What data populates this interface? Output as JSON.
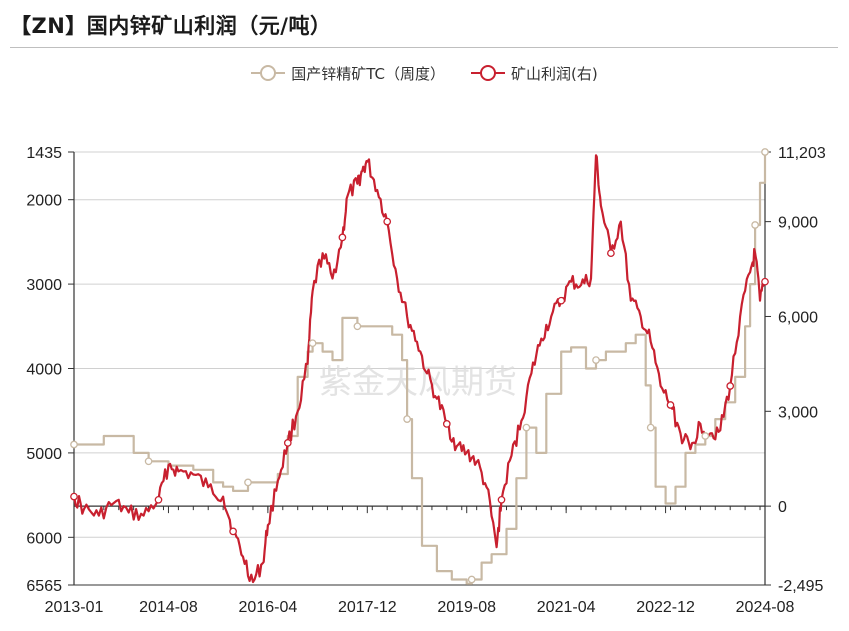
{
  "title": "【ZN】国内锌矿山利润（元/吨）",
  "watermark": "紫金天风期货",
  "colors": {
    "tc": "#c8b9a4",
    "profit": "#c8202f",
    "grid": "#d0d0d0",
    "axis": "#333333"
  },
  "chart_data": {
    "type": "line",
    "title": "【ZN】国内锌矿山利润（元/吨）",
    "legend_position": "top-center",
    "grid": true,
    "x_ticks": [
      "2013-01",
      "2014-08",
      "2016-04",
      "2017-12",
      "2019-08",
      "2021-04",
      "2022-12",
      "2024-08"
    ],
    "x_range": [
      "2013-01",
      "2024-08"
    ],
    "left_axis": {
      "ticks": [
        "1435",
        "2000",
        "3000",
        "4000",
        "5000",
        "6000",
        "6565"
      ],
      "range": [
        1435,
        6565
      ],
      "inverted": true
    },
    "right_axis": {
      "ticks": [
        "11,203",
        "9,000",
        "6,000",
        "3,000",
        "0",
        "-2,495"
      ],
      "range": [
        -2495,
        11203
      ]
    },
    "series": [
      {
        "name": "国产锌精矿TC（周度）",
        "axis": "left",
        "marker": "hollow-circle",
        "points": [
          [
            "2013-01",
            4900
          ],
          [
            "2013-06",
            4900
          ],
          [
            "2013-07",
            4800
          ],
          [
            "2013-12",
            4800
          ],
          [
            "2014-01",
            5000
          ],
          [
            "2014-03",
            5000
          ],
          [
            "2014-04",
            5100
          ],
          [
            "2014-08",
            5150
          ],
          [
            "2015-01",
            5200
          ],
          [
            "2015-05",
            5350
          ],
          [
            "2015-07",
            5400
          ],
          [
            "2015-09",
            5450
          ],
          [
            "2015-12",
            5350
          ],
          [
            "2016-04",
            5350
          ],
          [
            "2016-06",
            5250
          ],
          [
            "2016-08",
            4800
          ],
          [
            "2016-10",
            4100
          ],
          [
            "2016-12",
            3800
          ],
          [
            "2017-01",
            3700
          ],
          [
            "2017-03",
            3800
          ],
          [
            "2017-05",
            3900
          ],
          [
            "2017-06",
            3900
          ],
          [
            "2017-07",
            3400
          ],
          [
            "2017-09",
            3400
          ],
          [
            "2017-10",
            3500
          ],
          [
            "2017-11",
            3500
          ],
          [
            "2018-01",
            3500
          ],
          [
            "2018-03",
            3500
          ],
          [
            "2018-05",
            3600
          ],
          [
            "2018-07",
            3900
          ],
          [
            "2018-08",
            4600
          ],
          [
            "2018-09",
            5300
          ],
          [
            "2018-11",
            6100
          ],
          [
            "2019-02",
            6400
          ],
          [
            "2019-05",
            6500
          ],
          [
            "2019-08",
            6550
          ],
          [
            "2019-09",
            6500
          ],
          [
            "2019-11",
            6300
          ],
          [
            "2020-01",
            6200
          ],
          [
            "2020-02",
            6200
          ],
          [
            "2020-04",
            5900
          ],
          [
            "2020-06",
            5300
          ],
          [
            "2020-08",
            4700
          ],
          [
            "2020-10",
            5000
          ],
          [
            "2020-12",
            4300
          ],
          [
            "2021-03",
            3800
          ],
          [
            "2021-05",
            3750
          ],
          [
            "2021-08",
            4000
          ],
          [
            "2021-10",
            3900
          ],
          [
            "2021-12",
            3800
          ],
          [
            "2022-02",
            3800
          ],
          [
            "2022-04",
            3700
          ],
          [
            "2022-06",
            3600
          ],
          [
            "2022-08",
            4200
          ],
          [
            "2022-09",
            4700
          ],
          [
            "2022-10",
            5400
          ],
          [
            "2022-12",
            5600
          ],
          [
            "2023-02",
            5400
          ],
          [
            "2023-04",
            5000
          ],
          [
            "2023-06",
            4900
          ],
          [
            "2023-08",
            4800
          ],
          [
            "2023-10",
            4600
          ],
          [
            "2023-12",
            4400
          ],
          [
            "2024-02",
            4100
          ],
          [
            "2024-04",
            3500
          ],
          [
            "2024-05",
            3000
          ],
          [
            "2024-06",
            2300
          ],
          [
            "2024-07",
            1800
          ],
          [
            "2024-08",
            1435
          ]
        ]
      },
      {
        "name": "矿山利润(右)",
        "axis": "right",
        "marker": "hollow-circle",
        "points": [
          [
            "2013-01",
            300
          ],
          [
            "2013-03",
            -100
          ],
          [
            "2013-06",
            -300
          ],
          [
            "2013-09",
            100
          ],
          [
            "2013-12",
            -200
          ],
          [
            "2014-03",
            -300
          ],
          [
            "2014-06",
            200
          ],
          [
            "2014-08",
            1300
          ],
          [
            "2014-10",
            1100
          ],
          [
            "2015-01",
            1000
          ],
          [
            "2015-04",
            600
          ],
          [
            "2015-07",
            300
          ],
          [
            "2015-09",
            -800
          ],
          [
            "2015-11",
            -1600
          ],
          [
            "2016-01",
            -2400
          ],
          [
            "2016-03",
            -1800
          ],
          [
            "2016-04",
            -600
          ],
          [
            "2016-06",
            800
          ],
          [
            "2016-08",
            2000
          ],
          [
            "2016-10",
            3000
          ],
          [
            "2016-12",
            4500
          ],
          [
            "2017-01",
            6800
          ],
          [
            "2017-03",
            8000
          ],
          [
            "2017-05",
            7200
          ],
          [
            "2017-07",
            8500
          ],
          [
            "2017-08",
            9800
          ],
          [
            "2017-10",
            10200
          ],
          [
            "2017-11",
            10600
          ],
          [
            "2017-12",
            10900
          ],
          [
            "2018-02",
            10000
          ],
          [
            "2018-04",
            9000
          ],
          [
            "2018-06",
            7200
          ],
          [
            "2018-08",
            6000
          ],
          [
            "2018-10",
            5200
          ],
          [
            "2018-12",
            4200
          ],
          [
            "2019-02",
            3400
          ],
          [
            "2019-04",
            2600
          ],
          [
            "2019-06",
            1900
          ],
          [
            "2019-08",
            1700
          ],
          [
            "2019-10",
            1400
          ],
          [
            "2019-12",
            600
          ],
          [
            "2020-02",
            -1300
          ],
          [
            "2020-03",
            200
          ],
          [
            "2020-05",
            1600
          ],
          [
            "2020-07",
            2700
          ],
          [
            "2020-09",
            4200
          ],
          [
            "2020-11",
            5300
          ],
          [
            "2021-01",
            6000
          ],
          [
            "2021-03",
            6500
          ],
          [
            "2021-05",
            7100
          ],
          [
            "2021-07",
            7000
          ],
          [
            "2021-09",
            7200
          ],
          [
            "2021-10",
            11100
          ],
          [
            "2021-11",
            9500
          ],
          [
            "2022-01",
            8000
          ],
          [
            "2022-03",
            9000
          ],
          [
            "2022-05",
            6500
          ],
          [
            "2022-07",
            6000
          ],
          [
            "2022-09",
            5200
          ],
          [
            "2022-11",
            3800
          ],
          [
            "2023-01",
            3200
          ],
          [
            "2023-03",
            2300
          ],
          [
            "2023-05",
            1800
          ],
          [
            "2023-07",
            2600
          ],
          [
            "2023-09",
            2300
          ],
          [
            "2023-11",
            2400
          ],
          [
            "2024-01",
            3800
          ],
          [
            "2024-03",
            6000
          ],
          [
            "2024-05",
            7400
          ],
          [
            "2024-06",
            8000
          ],
          [
            "2024-07",
            6500
          ],
          [
            "2024-08",
            7100
          ]
        ]
      }
    ]
  }
}
